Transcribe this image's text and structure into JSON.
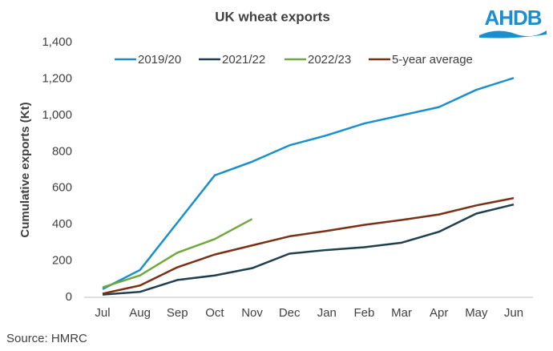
{
  "chart_data": {
    "type": "line",
    "title": "UK wheat exports",
    "logo": "AHDB",
    "source": "Source: HMRC",
    "y_label": "Cumulative exports (Kt)",
    "categories": [
      "Jul",
      "Aug",
      "Sep",
      "Oct",
      "Nov",
      "Dec",
      "Jan",
      "Feb",
      "Mar",
      "Apr",
      "May",
      "Jun"
    ],
    "series": [
      {
        "name": "2019/20",
        "color": "#1a8fd0",
        "values": [
          45,
          150,
          410,
          670,
          745,
          835,
          890,
          955,
          1000,
          1045,
          1140,
          1205
        ]
      },
      {
        "name": "2021/22",
        "color": "#1f3f4f",
        "values": [
          15,
          30,
          95,
          120,
          160,
          240,
          260,
          275,
          300,
          360,
          460,
          510
        ]
      },
      {
        "name": "2022/23",
        "color": "#70a83c",
        "values": [
          55,
          120,
          245,
          320,
          430,
          null,
          null,
          null,
          null,
          null,
          null,
          null
        ]
      },
      {
        "name": "5-year average",
        "color": "#7b2f14",
        "values": [
          20,
          65,
          165,
          235,
          285,
          335,
          365,
          398,
          425,
          455,
          505,
          545
        ]
      }
    ],
    "ylim": [
      0,
      1400
    ],
    "yticks": [
      0,
      200,
      400,
      600,
      800,
      {
        "value": 1000,
        "label": "1,000"
      },
      {
        "value": 1200,
        "label": "1,200"
      },
      {
        "value": 1400,
        "label": "1,400"
      }
    ],
    "grid": false
  }
}
